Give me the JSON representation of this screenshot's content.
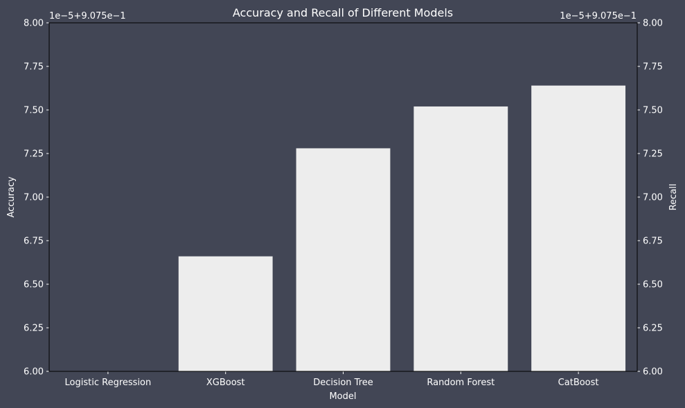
{
  "colors": {
    "figure_bg": "#424655",
    "plot_bg": "#424655",
    "bar": "#ededed",
    "text": "#ffffff",
    "axis": "#000000",
    "tick": "#ffffff"
  },
  "chart_data": {
    "type": "bar",
    "title": "Accuracy and Recall of Different Models",
    "xlabel": "Model",
    "ylabel": "Accuracy",
    "ylabel_right": "Recall",
    "offset_label": "1e−5+9.075e−1",
    "offset_label_right": "1e−5+9.075e−1",
    "categories": [
      "Logistic Regression",
      "XGBoost",
      "Decision Tree",
      "Random Forest",
      "CatBoost"
    ],
    "series": [
      {
        "values": [
          0.90756,
          0.9075666,
          0.9075728,
          0.9075752,
          0.9075764
        ]
      }
    ],
    "axis_offset": 0.9075,
    "axis_scale": 1e-05,
    "ylim": [
      0.90756,
      0.90758
    ],
    "yticks": [
      6.0,
      6.25,
      6.5,
      6.75,
      7.0,
      7.25,
      7.5,
      7.75,
      8.0
    ],
    "ytick_labels": [
      "6.00",
      "6.25",
      "6.50",
      "6.75",
      "7.00",
      "7.25",
      "7.50",
      "7.75",
      "8.00"
    ],
    "grid": false,
    "legend": "none"
  }
}
